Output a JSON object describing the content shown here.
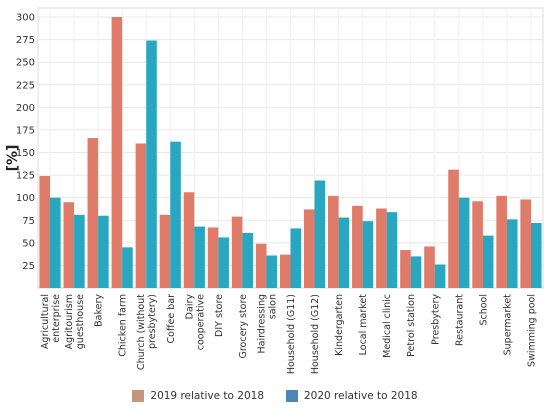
{
  "chart_data": {
    "type": "bar",
    "ylabel": "[%]",
    "ylim": [
      0,
      310
    ],
    "yticks": [
      25,
      50,
      75,
      100,
      125,
      150,
      175,
      200,
      225,
      250,
      275,
      300
    ],
    "grid": true,
    "legend_position": "bottom",
    "categories": [
      "Agricultural enterprise",
      "Agritourism guesthouse",
      "Bakery",
      "Chicken farm",
      "Church (without presbytery)",
      "Coffee bar",
      "Dairy cooperative",
      "DIY store",
      "Grocery store",
      "Hairdressing salon",
      "Household (G11)",
      "Household (G12)",
      "Kindergarten",
      "Local market",
      "Medical clinic",
      "Petrol station",
      "Presbytery",
      "Restaurant",
      "School",
      "Supermarket",
      "Swimming pool"
    ],
    "category_lines": [
      [
        "Agricultural",
        "enterprise"
      ],
      [
        "Agritourism",
        "guesthouse"
      ],
      [
        "Bakery"
      ],
      [
        "Chicken farm"
      ],
      [
        "Church (without",
        "presbytery)"
      ],
      [
        "Coffee bar"
      ],
      [
        "Dairy",
        "cooperative"
      ],
      [
        "DIY store"
      ],
      [
        "Grocery store"
      ],
      [
        "Hairdressing",
        "salon"
      ],
      [
        "Household (G11)"
      ],
      [
        "Household (G12)"
      ],
      [
        "Kindergarten"
      ],
      [
        "Local market"
      ],
      [
        "Medical clinic"
      ],
      [
        "Petrol station"
      ],
      [
        "Presbytery"
      ],
      [
        "Restaurant"
      ],
      [
        "School"
      ],
      [
        "Supermarket"
      ],
      [
        "Swimming pool"
      ]
    ],
    "series": [
      {
        "name": "2019 relative to 2018",
        "color": "#E07B6A",
        "values": [
          124,
          95,
          166,
          300,
          160,
          81,
          106,
          67,
          79,
          49,
          37,
          87,
          102,
          91,
          88,
          42,
          46,
          131,
          96,
          102,
          98
        ]
      },
      {
        "name": "2020 relative to 2018",
        "color": "#2AA7C0",
        "values": [
          100,
          81,
          80,
          45,
          274,
          162,
          68,
          56,
          61,
          36,
          66,
          119,
          78,
          74,
          84,
          35,
          26,
          100,
          58,
          76,
          72
        ]
      }
    ]
  },
  "legend": {
    "items": [
      {
        "label": "2019 relative to 2018",
        "swatch": "#C4977A"
      },
      {
        "label": "2020 relative to 2018",
        "swatch": "#4F86B8"
      }
    ]
  }
}
